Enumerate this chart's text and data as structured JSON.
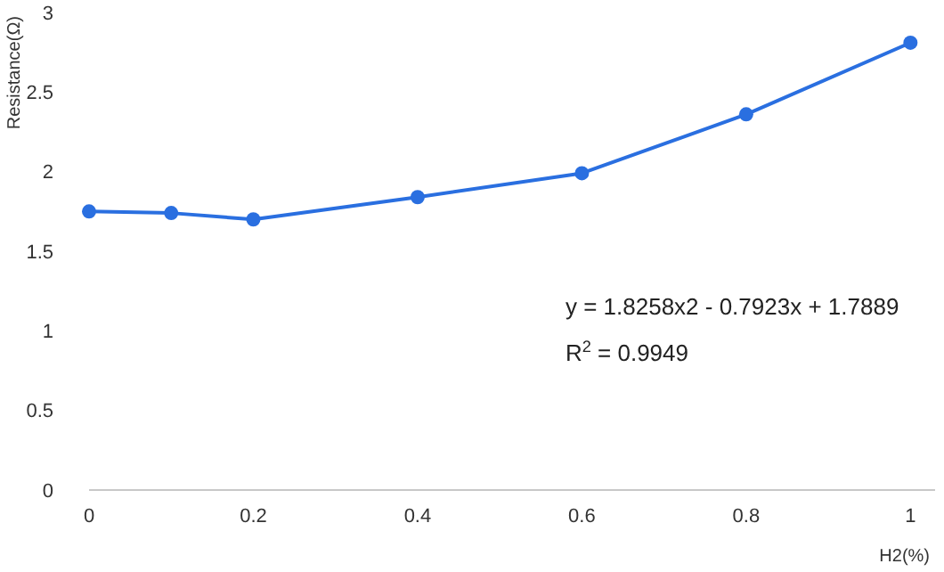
{
  "chart_data": {
    "type": "line",
    "xlabel": "H2(%)",
    "ylabel": "Resistance(Ω)",
    "x": [
      0,
      0.1,
      0.2,
      0.4,
      0.6,
      0.8,
      1
    ],
    "series": [
      {
        "color": "#2a6fe0",
        "values": [
          1.75,
          1.74,
          1.7,
          1.84,
          1.99,
          2.36,
          2.81
        ]
      }
    ],
    "xlim": [
      0,
      1.03
    ],
    "xticks": [
      0,
      0.2,
      0.4,
      0.6,
      0.8,
      1
    ],
    "ylim": [
      0,
      3
    ],
    "yticks": [
      0,
      0.5,
      1,
      1.5,
      2,
      2.5,
      3
    ],
    "annotations": [
      "y = 1.8258x2 - 0.7923x + 1.7889",
      "R$^{2}$ = 0.9949"
    ],
    "grid": false,
    "marker": "circle",
    "line_style": "solid"
  }
}
